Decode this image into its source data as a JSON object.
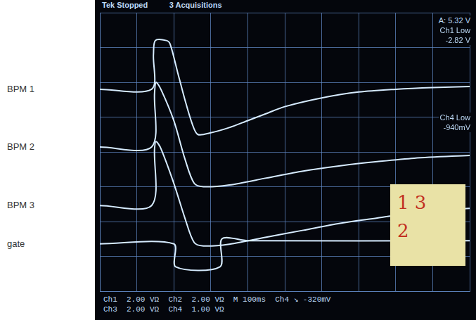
{
  "chart_data": {
    "type": "line",
    "xlim": [
      0,
      1000
    ],
    "xticks": [
      0,
      100,
      200,
      300,
      400,
      500,
      600,
      700,
      800,
      900,
      1000
    ],
    "ylim": [
      -4,
      4
    ],
    "yticks": [
      -4,
      -3,
      -2,
      -1,
      0,
      1,
      2,
      3,
      4
    ],
    "grid": true,
    "tick_labels": false,
    "series": [
      {
        "name": "BPM 1",
        "color": "#d6ebff",
        "x": [
          0,
          140,
          145,
          150,
          180,
          190,
          210,
          230,
          250,
          265,
          300,
          350,
          400,
          450,
          500,
          600,
          700,
          800,
          900,
          1000
        ],
        "values": [
          1.8,
          1.8,
          2.8,
          3.2,
          3.2,
          3.1,
          2.3,
          1.5,
          0.8,
          0.5,
          0.55,
          0.7,
          0.9,
          1.1,
          1.3,
          1.55,
          1.72,
          1.8,
          1.85,
          1.88
        ]
      },
      {
        "name": "BPM 2",
        "color": "#d6ebff",
        "x": [
          0,
          140,
          148,
          152,
          165,
          200,
          230,
          255,
          280,
          350,
          450,
          550,
          650,
          750,
          850,
          1000
        ],
        "values": [
          0.14,
          0.14,
          1.7,
          2.0,
          1.8,
          0.9,
          -0.2,
          -0.9,
          -1.0,
          -0.95,
          -0.75,
          -0.55,
          -0.4,
          -0.28,
          -0.18,
          -0.1
        ]
      },
      {
        "name": "BPM 3",
        "color": "#d6ebff",
        "x": [
          0,
          140,
          148,
          152,
          165,
          200,
          230,
          255,
          280,
          350,
          450,
          550,
          650,
          750,
          850,
          1000
        ],
        "values": [
          -1.54,
          -1.54,
          0.1,
          0.3,
          0.1,
          -0.9,
          -1.9,
          -2.6,
          -2.7,
          -2.65,
          -2.45,
          -2.25,
          -2.05,
          -1.9,
          -1.75,
          -1.62
        ]
      },
      {
        "name": "gate",
        "color": "#d6ebff",
        "x": [
          0,
          200,
          205,
          325,
          330,
          400,
          1000
        ],
        "values": [
          -2.64,
          -2.64,
          -3.3,
          -3.3,
          -2.5,
          -2.55,
          -2.55
        ]
      }
    ]
  },
  "screen": {
    "header": [
      "Tek Stopped",
      "3 Acquisitions"
    ],
    "readouts_right": [
      [
        "A: 5.32 V",
        "Ch1 Low",
        "-2.82 V"
      ],
      [
        "Ch4 Low",
        "-940mV"
      ]
    ],
    "readouts_bottom": [
      [
        "Ch1",
        "2.00 VΩ",
        "Ch2",
        "2.00 VΩ",
        "M 100ms",
        "Ch4 ↘ -320mV"
      ],
      [
        "Ch3",
        "2.00 VΩ",
        "Ch4",
        "1.00 VΩ"
      ]
    ],
    "note": [
      "1 3",
      "2"
    ]
  }
}
